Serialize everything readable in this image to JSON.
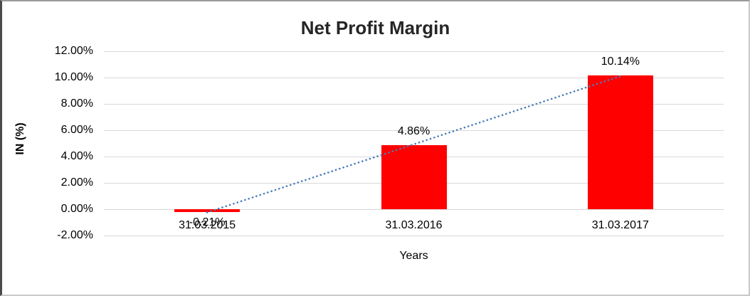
{
  "window": {
    "background": "#ffffff",
    "border_color": "#9a9a9a"
  },
  "chart_data": {
    "type": "bar",
    "title": "Net Profit Margin",
    "xlabel": "Years",
    "ylabel": "IN (%)",
    "categories": [
      "31.03.2015",
      "31.03.2016",
      "31.03.2017"
    ],
    "values": [
      -0.21,
      4.86,
      10.14
    ],
    "data_labels": [
      "-0.21%",
      "4.86%",
      "10.14%"
    ],
    "ylim": [
      -2,
      12
    ],
    "ytick_step": 2,
    "ytick_labels": [
      "12.00%",
      "10.00%",
      "8.00%",
      "6.00%",
      "4.00%",
      "2.00%",
      "0.00%",
      "-2.00%"
    ],
    "grid": true,
    "legend": "none",
    "bar_color": "#ff0000",
    "gridline_color": "#d9d9d9",
    "text_color": "#000000",
    "title_color": "#262626",
    "trendline": {
      "type": "linear",
      "style": "round-dot",
      "color": "#4a7ebb"
    }
  }
}
